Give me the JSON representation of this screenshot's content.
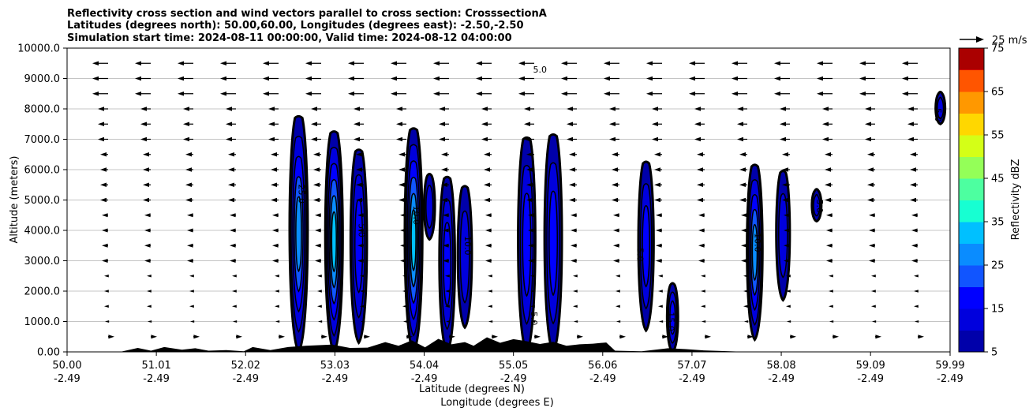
{
  "chart_data": {
    "type": "heatmap",
    "title": [
      "Reflectivity cross section and wind vectors parallel to cross section: CrosssectionA",
      "Latitudes (degrees north): 50.00,60.00, Longitudes (degrees east): -2.50,-2.50",
      "Simulation start time: 2024-08-11 00:00:00, Valid time: 2024-08-12 04:00:00"
    ],
    "xlabel": [
      "Latitude (degrees N)",
      "Longitude (degrees E)"
    ],
    "ylabel": "Altitude (meters)",
    "xlim": [
      50.0,
      59.99
    ],
    "ylim": [
      0,
      10000
    ],
    "grid": "horizontal",
    "x_ticks": [
      {
        "x": 50.0,
        "lat": "50.00",
        "lon": "-2.49"
      },
      {
        "x": 51.01,
        "lat": "51.01",
        "lon": "-2.49"
      },
      {
        "x": 52.02,
        "lat": "52.02",
        "lon": "-2.49"
      },
      {
        "x": 53.03,
        "lat": "53.03",
        "lon": "-2.49"
      },
      {
        "x": 54.04,
        "lat": "54.04",
        "lon": "-2.49"
      },
      {
        "x": 55.05,
        "lat": "55.05",
        "lon": "-2.49"
      },
      {
        "x": 56.06,
        "lat": "56.06",
        "lon": "-2.49"
      },
      {
        "x": 57.07,
        "lat": "57.07",
        "lon": "-2.49"
      },
      {
        "x": 58.08,
        "lat": "58.08",
        "lon": "-2.49"
      },
      {
        "x": 59.09,
        "lat": "59.09",
        "lon": "-2.49"
      },
      {
        "x": 59.99,
        "lat": "59.99",
        "lon": "-2.49"
      }
    ],
    "y_ticks": [
      {
        "v": 0,
        "label": "0.00"
      },
      {
        "v": 1000,
        "label": "1000.0"
      },
      {
        "v": 2000,
        "label": "2000.0"
      },
      {
        "v": 3000,
        "label": "3000.0"
      },
      {
        "v": 4000,
        "label": "4000.0"
      },
      {
        "v": 5000,
        "label": "5000.0"
      },
      {
        "v": 6000,
        "label": "6000.0"
      },
      {
        "v": 7000,
        "label": "7000.0"
      },
      {
        "v": 8000,
        "label": "8000.0"
      },
      {
        "v": 9000,
        "label": "9000.0"
      },
      {
        "v": 10000,
        "label": "10000.0"
      }
    ],
    "colorbar": {
      "label": "Reflectivity dBZ",
      "min": 5,
      "max": 75,
      "step": 5,
      "tick_values": [
        5,
        15,
        25,
        35,
        45,
        55,
        65,
        75
      ],
      "tick_labels": [
        "5",
        "15",
        "25",
        "35",
        "45",
        "55",
        "65",
        "75"
      ],
      "colors": [
        "#0000aa",
        "#0000dd",
        "#0000ff",
        "#1155ff",
        "#0a8cff",
        "#00c0ff",
        "#17ffd2",
        "#4dffa0",
        "#94ff58",
        "#d4ff17",
        "#ffd700",
        "#ff9800",
        "#ff5500",
        "#ff1500"
      ],
      "extra_colors": [
        "#aa0000"
      ]
    },
    "vector_key": {
      "label": "25 m/s",
      "speed": 25
    },
    "cells": [
      {
        "x": 52.62,
        "base": 0,
        "top": 7700,
        "peak": 25
      },
      {
        "x": 53.02,
        "base": 0,
        "top": 7200,
        "peak": 30
      },
      {
        "x": 53.3,
        "base": 300,
        "top": 6600,
        "peak": 15
      },
      {
        "x": 53.92,
        "base": 0,
        "top": 7300,
        "peak": 30
      },
      {
        "x": 54.1,
        "base": 3700,
        "top": 5800,
        "peak": 10
      },
      {
        "x": 54.3,
        "base": 0,
        "top": 5700,
        "peak": 15
      },
      {
        "x": 54.5,
        "base": 800,
        "top": 5400,
        "peak": 10
      },
      {
        "x": 55.2,
        "base": 0,
        "top": 7000,
        "peak": 15
      },
      {
        "x": 55.5,
        "base": 0,
        "top": 7100,
        "peak": 15
      },
      {
        "x": 56.55,
        "base": 700,
        "top": 6200,
        "peak": 15
      },
      {
        "x": 56.85,
        "base": 0,
        "top": 2200,
        "peak": 15
      },
      {
        "x": 57.78,
        "base": 400,
        "top": 6100,
        "peak": 25
      },
      {
        "x": 58.1,
        "base": 1700,
        "top": 5900,
        "peak": 10
      },
      {
        "x": 58.48,
        "base": 4300,
        "top": 5300,
        "peak": 10
      },
      {
        "x": 59.88,
        "base": 7500,
        "top": 8500,
        "peak": 10
      }
    ],
    "contour_labels": [
      {
        "x": 55.35,
        "y": 9200,
        "text": "5.0"
      },
      {
        "x": 52.62,
        "y": 5200,
        "text": "25.0",
        "rotate": 90
      },
      {
        "x": 53.3,
        "y": 4000,
        "text": "5.0",
        "rotate": 90
      },
      {
        "x": 53.92,
        "y": 4500,
        "text": "10.0",
        "rotate": 90
      },
      {
        "x": 54.5,
        "y": 3500,
        "text": "10.0",
        "rotate": 90
      },
      {
        "x": 55.25,
        "y": 1100,
        "text": "5.0",
        "rotate": 90
      },
      {
        "x": 56.45,
        "y": 3200,
        "text": "5.0",
        "rotate": 90
      },
      {
        "x": 56.8,
        "y": 1000,
        "text": "15.0",
        "rotate": 90
      },
      {
        "x": 57.78,
        "y": 3600,
        "text": "10.0",
        "rotate": 90
      },
      {
        "x": 58.48,
        "y": 4800,
        "text": "5.0",
        "rotate": 90
      },
      {
        "x": 59.82,
        "y": 7800,
        "text": "5.0",
        "rotate": 90
      }
    ],
    "terrain": [
      [
        50.0,
        0
      ],
      [
        50.6,
        0
      ],
      [
        50.8,
        130
      ],
      [
        50.95,
        40
      ],
      [
        51.1,
        160
      ],
      [
        51.3,
        70
      ],
      [
        51.45,
        120
      ],
      [
        51.6,
        40
      ],
      [
        51.8,
        60
      ],
      [
        52.0,
        20
      ],
      [
        52.1,
        160
      ],
      [
        52.3,
        60
      ],
      [
        52.5,
        160
      ],
      [
        52.7,
        200
      ],
      [
        52.85,
        220
      ],
      [
        53.0,
        240
      ],
      [
        53.2,
        130
      ],
      [
        53.4,
        140
      ],
      [
        53.6,
        320
      ],
      [
        53.75,
        200
      ],
      [
        53.9,
        380
      ],
      [
        54.05,
        150
      ],
      [
        54.2,
        430
      ],
      [
        54.35,
        250
      ],
      [
        54.5,
        320
      ],
      [
        54.6,
        200
      ],
      [
        54.75,
        480
      ],
      [
        54.9,
        300
      ],
      [
        55.05,
        420
      ],
      [
        55.2,
        350
      ],
      [
        55.35,
        260
      ],
      [
        55.5,
        330
      ],
      [
        55.65,
        200
      ],
      [
        55.8,
        250
      ],
      [
        55.95,
        270
      ],
      [
        56.1,
        310
      ],
      [
        56.2,
        40
      ],
      [
        56.5,
        20
      ],
      [
        56.8,
        120
      ],
      [
        57.0,
        90
      ],
      [
        57.2,
        50
      ],
      [
        57.4,
        30
      ],
      [
        57.6,
        10
      ],
      [
        57.7,
        0
      ],
      [
        59.99,
        0
      ]
    ]
  }
}
